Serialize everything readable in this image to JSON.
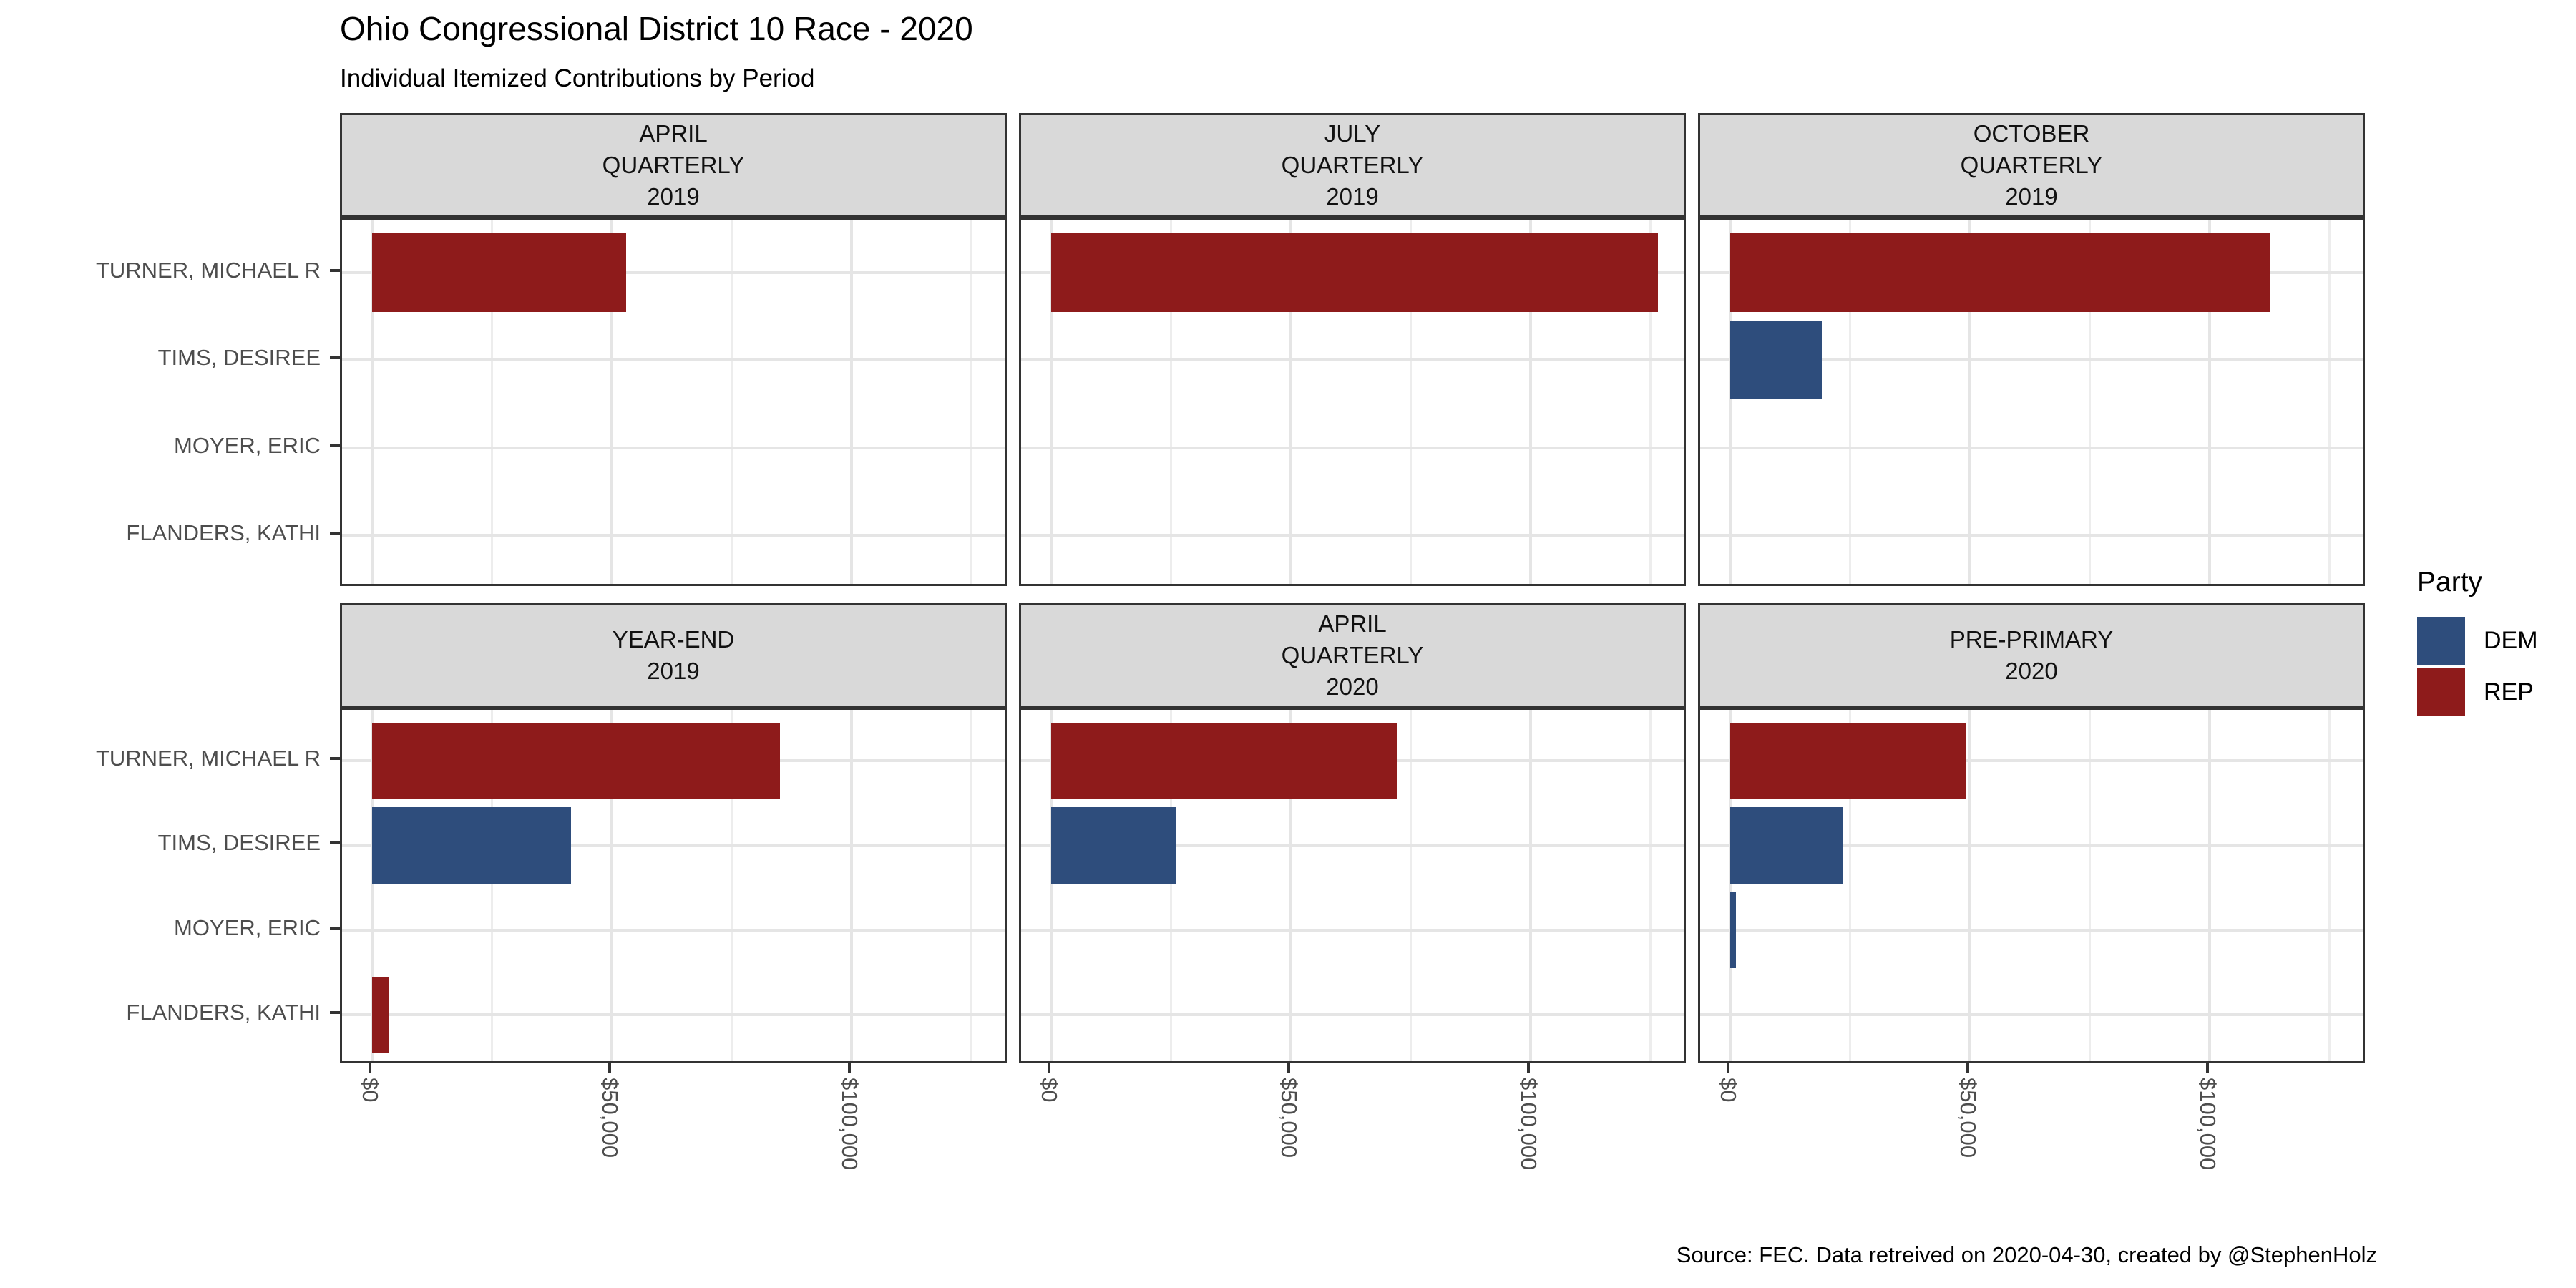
{
  "title": "Ohio Congressional District 10 Race - 2020",
  "subtitle": "Individual Itemized Contributions by Period",
  "caption": "Source: FEC. Data retreived on 2020-04-30, created by @StephenHolz",
  "legend": {
    "title": "Party",
    "entries": [
      {
        "label": "DEM",
        "color": "#2E4D7C"
      },
      {
        "label": "REP",
        "color": "#8E1B1B"
      }
    ]
  },
  "chart_data": {
    "type": "bar",
    "orientation": "horizontal",
    "title": "Ohio Congressional District 10 Race - 2020",
    "subtitle": "Individual Itemized Contributions by Period",
    "candidates": [
      "TURNER, MICHAEL R",
      "TIMS, DESIREE",
      "MOYER, ERIC",
      "FLANDERS, KATHI"
    ],
    "x_tick_labels": [
      "$0",
      "$50,000",
      "$100,000"
    ],
    "x_tick_values": [
      0,
      50000,
      100000
    ],
    "x_grid_values": [
      0,
      25000,
      50000,
      75000,
      100000,
      125000
    ],
    "x_max": 126500,
    "grid": "on",
    "legend_position": "right",
    "party_colors": {
      "DEM": "#2E4D7C",
      "REP": "#8E1B1B"
    },
    "facets": [
      {
        "label_lines": [
          "APRIL",
          "QUARTERLY",
          "2019"
        ],
        "bars": [
          {
            "candidate": "TURNER, MICHAEL R",
            "party": "REP",
            "value": 53000
          }
        ]
      },
      {
        "label_lines": [
          "JULY",
          "QUARTERLY",
          "2019"
        ],
        "bars": [
          {
            "candidate": "TURNER, MICHAEL R",
            "party": "REP",
            "value": 126500
          }
        ]
      },
      {
        "label_lines": [
          "OCTOBER",
          "QUARTERLY",
          "2019"
        ],
        "bars": [
          {
            "candidate": "TURNER, MICHAEL R",
            "party": "REP",
            "value": 112500
          },
          {
            "candidate": "TIMS, DESIREE",
            "party": "DEM",
            "value": 19000
          }
        ]
      },
      {
        "label_lines": [
          "YEAR-END",
          "2019"
        ],
        "bars": [
          {
            "candidate": "TURNER, MICHAEL R",
            "party": "REP",
            "value": 85000
          },
          {
            "candidate": "TIMS, DESIREE",
            "party": "DEM",
            "value": 41500
          },
          {
            "candidate": "FLANDERS, KATHI",
            "party": "REP",
            "value": 3500
          }
        ]
      },
      {
        "label_lines": [
          "APRIL",
          "QUARTERLY",
          "2020"
        ],
        "bars": [
          {
            "candidate": "TURNER, MICHAEL R",
            "party": "REP",
            "value": 72000
          },
          {
            "candidate": "TIMS, DESIREE",
            "party": "DEM",
            "value": 26000
          }
        ]
      },
      {
        "label_lines": [
          "PRE-PRIMARY",
          "2020"
        ],
        "bars": [
          {
            "candidate": "TURNER, MICHAEL R",
            "party": "REP",
            "value": 49000
          },
          {
            "candidate": "TIMS, DESIREE",
            "party": "DEM",
            "value": 23500
          },
          {
            "candidate": "MOYER, ERIC",
            "party": "DEM",
            "value": 1200
          }
        ]
      }
    ]
  }
}
